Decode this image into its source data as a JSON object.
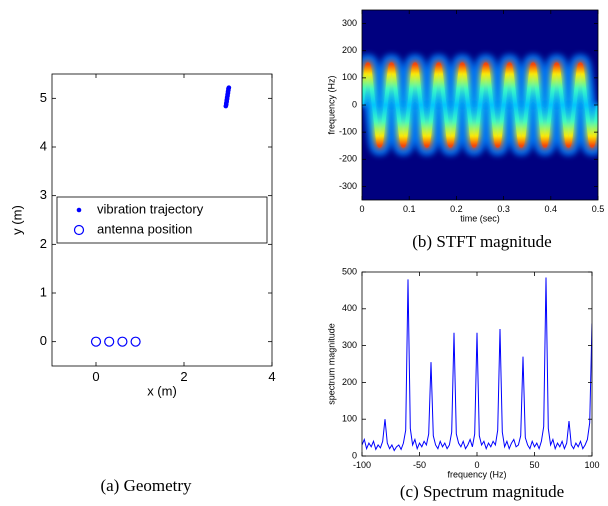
{
  "chart_data": [
    {
      "type": "scatter",
      "caption": "(a) Geometry",
      "xlabel": "x (m)",
      "ylabel": "y (m)",
      "xlim": [
        -1,
        4
      ],
      "xticks": [
        0,
        2,
        4
      ],
      "ylim": [
        -0.5,
        5.5
      ],
      "yticks": [
        0,
        1,
        2,
        3,
        4,
        5
      ],
      "legend": "center",
      "series": [
        {
          "name": "vibration trajectory",
          "color": "#0000ff",
          "marker": ".",
          "x": [
            2.95,
            2.96,
            2.96,
            2.97,
            2.97,
            2.98,
            2.98,
            2.99,
            2.99,
            3.0,
            3.0,
            3.01,
            3.01,
            3.02
          ],
          "y": [
            4.84,
            4.87,
            4.9,
            4.93,
            4.96,
            4.99,
            5.02,
            5.05,
            5.08,
            5.11,
            5.14,
            5.17,
            5.2,
            5.22
          ]
        },
        {
          "name": "antenna position",
          "color": "#0000ff",
          "marker": "o",
          "x": [
            0,
            0.3,
            0.6,
            0.9
          ],
          "y": [
            0,
            0,
            0,
            0
          ]
        }
      ]
    },
    {
      "type": "spectrogram",
      "caption": "(b) STFT magnitude",
      "xlabel": "time (sec)",
      "ylabel": "frequency (Hz)",
      "xlim": [
        0,
        0.5
      ],
      "xticks": [
        0,
        0.1,
        0.2,
        0.3,
        0.4,
        0.5
      ],
      "ylim": [
        -350,
        350
      ],
      "yticks": [
        -300,
        -200,
        -100,
        0,
        100,
        200,
        300
      ],
      "background": "#00007f",
      "x": [
        0,
        0.0125,
        0.025,
        0.0375,
        0.05,
        0.0625,
        0.075,
        0.0875,
        0.1,
        0.1125,
        0.125,
        0.1375,
        0.15,
        0.1625,
        0.175,
        0.1875,
        0.2,
        0.2125,
        0.225,
        0.2375,
        0.25,
        0.2625,
        0.275,
        0.2875,
        0.3,
        0.3125,
        0.325,
        0.3375,
        0.35,
        0.3625,
        0.375,
        0.3875,
        0.4,
        0.4125,
        0.425,
        0.4375,
        0.45,
        0.4625,
        0.475,
        0.4875,
        0.5
      ],
      "values": [
        0,
        150,
        0,
        -150,
        0,
        150,
        0,
        -150,
        0,
        150,
        0,
        -150,
        0,
        150,
        0,
        -150,
        0,
        150,
        0,
        -150,
        0,
        150,
        0,
        -150,
        0,
        150,
        0,
        -150,
        0,
        150,
        0,
        -150,
        0,
        150,
        0,
        -150,
        0,
        150,
        0,
        -150,
        0
      ]
    },
    {
      "type": "line",
      "caption": "(c) Spectrum magnitude",
      "xlabel": "frequency (Hz)",
      "ylabel": "spectrum magnitude",
      "xlim": [
        -100,
        100
      ],
      "xticks": [
        -100,
        -50,
        0,
        50,
        100
      ],
      "ylim": [
        0,
        500
      ],
      "yticks": [
        0,
        100,
        200,
        300,
        400,
        500
      ],
      "color": "#0000ff",
      "x": [
        -100,
        -98,
        -96,
        -94,
        -92,
        -90,
        -88,
        -86,
        -84,
        -82,
        -80,
        -78,
        -76,
        -74,
        -72,
        -70,
        -68,
        -66,
        -64,
        -62,
        -60,
        -58,
        -56,
        -54,
        -52,
        -50,
        -48,
        -46,
        -44,
        -42,
        -40,
        -38,
        -36,
        -34,
        -32,
        -30,
        -28,
        -26,
        -24,
        -22,
        -20,
        -18,
        -16,
        -14,
        -12,
        -10,
        -8,
        -6,
        -4,
        -2,
        0,
        2,
        4,
        6,
        8,
        10,
        12,
        14,
        16,
        18,
        20,
        22,
        24,
        26,
        28,
        30,
        32,
        34,
        36,
        38,
        40,
        42,
        44,
        46,
        48,
        50,
        52,
        54,
        56,
        58,
        60,
        62,
        64,
        66,
        68,
        70,
        72,
        74,
        76,
        78,
        80,
        82,
        84,
        86,
        88,
        90,
        92,
        94,
        96,
        98,
        100
      ],
      "values": [
        30,
        45,
        20,
        35,
        25,
        40,
        18,
        30,
        22,
        40,
        100,
        35,
        20,
        30,
        15,
        25,
        30,
        18,
        35,
        70,
        480,
        75,
        30,
        45,
        20,
        35,
        25,
        40,
        30,
        60,
        255,
        55,
        30,
        20,
        40,
        25,
        35,
        20,
        30,
        65,
        335,
        60,
        35,
        25,
        40,
        20,
        30,
        45,
        25,
        60,
        335,
        55,
        30,
        40,
        20,
        35,
        25,
        40,
        30,
        70,
        345,
        65,
        25,
        40,
        20,
        35,
        45,
        25,
        30,
        55,
        270,
        50,
        30,
        20,
        40,
        25,
        35,
        20,
        40,
        80,
        485,
        75,
        30,
        45,
        20,
        35,
        25,
        40,
        20,
        35,
        95,
        30,
        20,
        35,
        25,
        40,
        20,
        30,
        45,
        90,
        360
      ]
    }
  ]
}
